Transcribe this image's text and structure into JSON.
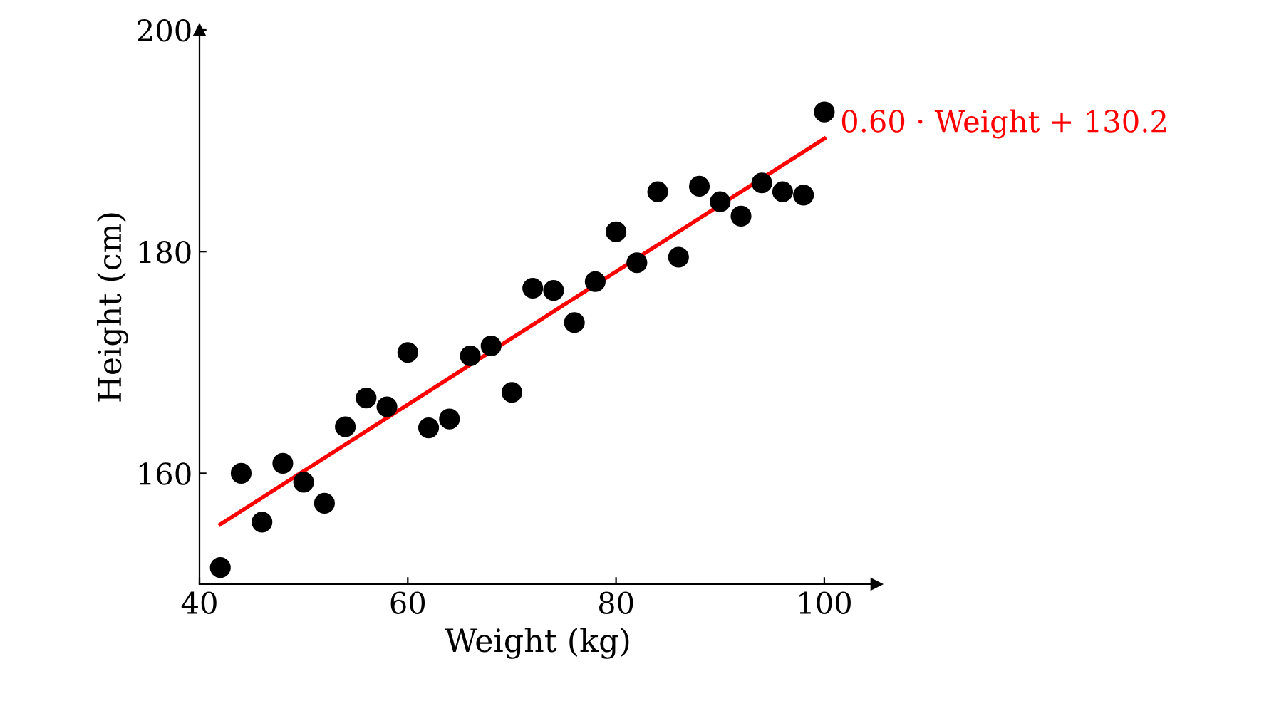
{
  "chart_data": {
    "type": "scatter",
    "xlabel": "Weight (kg)",
    "ylabel": "Height (cm)",
    "xlim": [
      40,
      105
    ],
    "ylim": [
      150,
      200
    ],
    "xticks": [
      40,
      60,
      80,
      100
    ],
    "yticks": [
      160,
      180,
      200
    ],
    "grid": false,
    "legend": false,
    "series": [
      {
        "marker": "circle",
        "color": "#000000",
        "x": [
          42,
          44,
          46,
          48,
          50,
          52,
          54,
          56,
          58,
          60,
          62,
          64,
          66,
          68,
          70,
          72,
          74,
          76,
          78,
          80,
          82,
          84,
          86,
          88,
          90,
          92,
          94,
          96,
          98,
          100
        ],
        "values": [
          151.5,
          160.0,
          155.6,
          160.9,
          159.2,
          157.3,
          164.2,
          166.8,
          166.0,
          170.9,
          164.1,
          164.9,
          170.6,
          171.5,
          167.3,
          176.7,
          176.5,
          173.6,
          177.3,
          181.8,
          179.0,
          185.4,
          179.5,
          185.9,
          184.5,
          183.2,
          186.2,
          185.4,
          185.1,
          192.6
        ]
      },
      {
        "type": "line",
        "marker": "none",
        "name": "0.60 · Weight + 130.2",
        "color": "#ff0000",
        "x": [
          42,
          100
        ],
        "values": [
          155.4,
          190.2
        ]
      }
    ]
  }
}
